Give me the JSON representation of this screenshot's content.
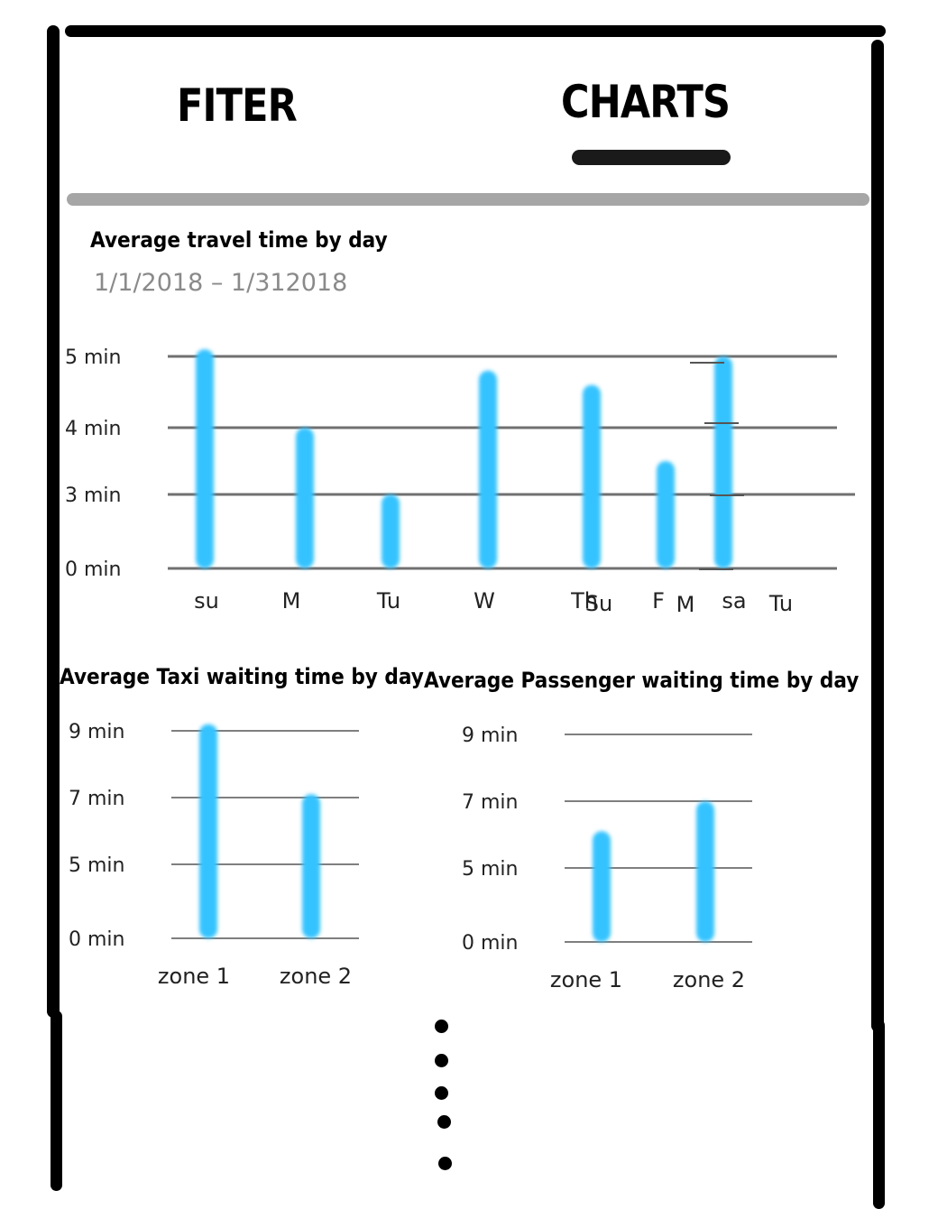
{
  "tabs": [
    {
      "label": "FITER",
      "active": false
    },
    {
      "label": "CHARTS",
      "active": true
    }
  ],
  "accent_color": "#35c3ff",
  "travel": {
    "title": "Average travel time by day",
    "date_range": "1/1/2018 – 1/312018"
  },
  "taxi": {
    "title": "Average Taxi waiting time by day"
  },
  "passenger": {
    "title": "Average Passenger waiting time by day"
  },
  "ghost_labels": [
    "Su",
    "M",
    "Tu"
  ],
  "more_indicator": "vertical-ellipsis",
  "chart_data": [
    {
      "type": "bar",
      "title": "Average travel time by day",
      "categories": [
        "su",
        "M",
        "Tu",
        "W",
        "Th",
        "F",
        "sa"
      ],
      "values": [
        5.1,
        4.0,
        3.0,
        4.8,
        4.6,
        3.5,
        5.0
      ],
      "y_ticks": [
        {
          "label": "0 min",
          "value": 0
        },
        {
          "label": "3 min",
          "value": 3
        },
        {
          "label": "4 min",
          "value": 4
        },
        {
          "label": "5 min",
          "value": 5
        }
      ],
      "grid": true
    },
    {
      "type": "bar",
      "title": "Average Taxi waiting time by day",
      "categories": [
        "zone 1",
        "zone 2"
      ],
      "values": [
        9.2,
        7.1
      ],
      "y_ticks": [
        {
          "label": "0 min",
          "value": 0
        },
        {
          "label": "5 min",
          "value": 5
        },
        {
          "label": "7 min",
          "value": 7
        },
        {
          "label": "9 min",
          "value": 9
        }
      ],
      "grid": true
    },
    {
      "type": "bar",
      "title": "Average Passenger waiting time by day",
      "categories": [
        "zone 1",
        "zone 2"
      ],
      "values": [
        6.1,
        7.0
      ],
      "y_ticks": [
        {
          "label": "0 min",
          "value": 0
        },
        {
          "label": "5 min",
          "value": 5
        },
        {
          "label": "7 min",
          "value": 7
        },
        {
          "label": "9 min",
          "value": 9
        }
      ],
      "grid": true
    }
  ]
}
